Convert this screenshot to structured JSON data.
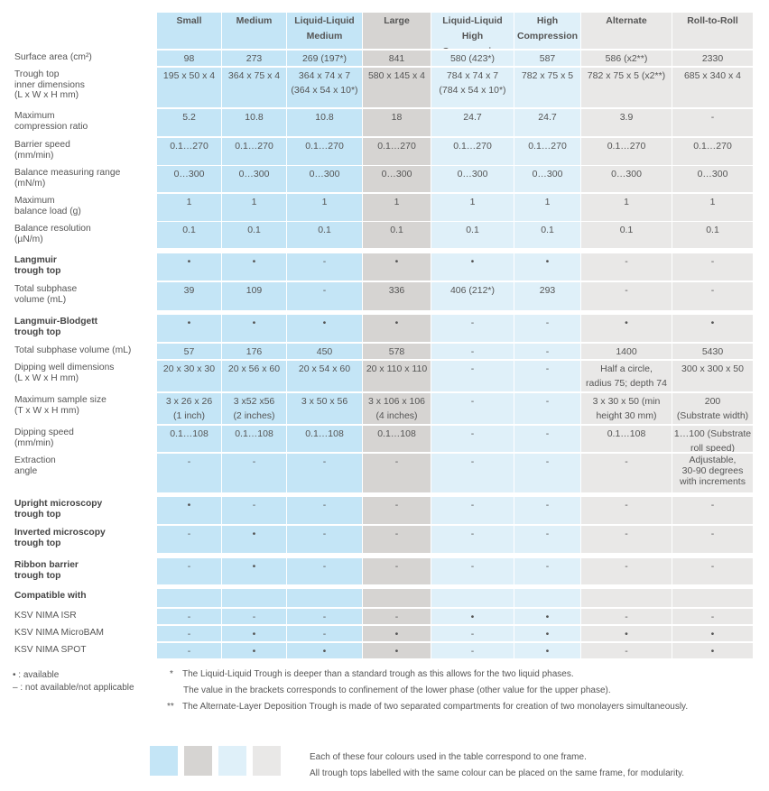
{
  "columns": [
    {
      "l1": "Small",
      "l2": ""
    },
    {
      "l1": "Medium",
      "l2": ""
    },
    {
      "l1": "Liquid-Liquid",
      "l2": "Medium"
    },
    {
      "l1": "Large",
      "l2": ""
    },
    {
      "l1": "Liquid-Liquid",
      "l2": "High Compression"
    },
    {
      "l1": "High",
      "l2": "Compression"
    },
    {
      "l1": "Alternate",
      "l2": ""
    },
    {
      "l1": "Roll-to-Roll",
      "l2": ""
    }
  ],
  "rows": [
    {
      "label": [
        "Surface area (cm²)"
      ],
      "bold": false,
      "cells": [
        [
          "98"
        ],
        [
          "273"
        ],
        [
          "269 (197*)"
        ],
        [
          "841"
        ],
        [
          "580 (423*)"
        ],
        [
          "587"
        ],
        [
          "586 (x2**)"
        ],
        [
          "2330"
        ]
      ]
    },
    {
      "label": [
        "Trough top",
        "inner dimensions",
        "(L x W x H mm)"
      ],
      "bold": false,
      "cells": [
        [
          "195 x 50 x 4"
        ],
        [
          "364 x 75 x 4"
        ],
        [
          "364 x 74 x 7",
          "(364 x 54 x 10*)"
        ],
        [
          "580 x 145 x 4"
        ],
        [
          "784 x 74 x 7",
          "(784 x 54 x 10*)"
        ],
        [
          "782 x 75 x 5"
        ],
        [
          "782 x 75 x 5  (x2**)"
        ],
        [
          "685 x 340 x 4"
        ]
      ]
    },
    {
      "label": [
        "Maximum",
        "compression ratio"
      ],
      "bold": false,
      "cells": [
        [
          "5.2"
        ],
        [
          "10.8"
        ],
        [
          "10.8"
        ],
        [
          "18"
        ],
        [
          "24.7"
        ],
        [
          "24.7"
        ],
        [
          "3.9"
        ],
        [
          "-"
        ]
      ]
    },
    {
      "label": [
        "Barrier speed",
        "(mm/min)"
      ],
      "bold": false,
      "cells": [
        [
          "0.1…270"
        ],
        [
          "0.1…270"
        ],
        [
          "0.1…270"
        ],
        [
          "0.1…270"
        ],
        [
          "0.1…270"
        ],
        [
          "0.1…270"
        ],
        [
          "0.1…270"
        ],
        [
          "0.1…270"
        ]
      ]
    },
    {
      "label": [
        "Balance measuring range",
        "(mN/m)"
      ],
      "bold": false,
      "cells": [
        [
          "0…300"
        ],
        [
          "0…300"
        ],
        [
          "0…300"
        ],
        [
          "0…300"
        ],
        [
          "0…300"
        ],
        [
          "0…300"
        ],
        [
          "0…300"
        ],
        [
          "0…300"
        ]
      ]
    },
    {
      "label": [
        "Maximum",
        "balance load (g)"
      ],
      "bold": false,
      "cells": [
        [
          "1"
        ],
        [
          "1"
        ],
        [
          "1"
        ],
        [
          "1"
        ],
        [
          "1"
        ],
        [
          "1"
        ],
        [
          "1"
        ],
        [
          "1"
        ]
      ]
    },
    {
      "label": [
        "Balance resolution",
        "(µN/m)"
      ],
      "bold": false,
      "cells": [
        [
          "0.1"
        ],
        [
          "0.1"
        ],
        [
          "0.1"
        ],
        [
          "0.1"
        ],
        [
          "0.1"
        ],
        [
          "0.1"
        ],
        [
          "0.1"
        ],
        [
          "0.1"
        ]
      ]
    },
    {
      "label": [
        "Langmuir",
        "trough top"
      ],
      "bold": true,
      "cells": [
        [
          "•"
        ],
        [
          "•"
        ],
        [
          "-"
        ],
        [
          "•"
        ],
        [
          "•"
        ],
        [
          "•"
        ],
        [
          "-"
        ],
        [
          "-"
        ]
      ]
    },
    {
      "label": [
        "Total subphase",
        "volume (mL)"
      ],
      "bold": false,
      "cells": [
        [
          "39"
        ],
        [
          "109"
        ],
        [
          "-"
        ],
        [
          "336"
        ],
        [
          "406 (212*)"
        ],
        [
          "293"
        ],
        [
          "-"
        ],
        [
          "-"
        ]
      ]
    },
    {
      "label": [
        "Langmuir-Blodgett",
        "trough top"
      ],
      "bold": true,
      "cells": [
        [
          "•"
        ],
        [
          "•"
        ],
        [
          "•"
        ],
        [
          "•"
        ],
        [
          "-"
        ],
        [
          "-"
        ],
        [
          "•"
        ],
        [
          "•"
        ]
      ]
    },
    {
      "label": [
        "Total subphase volume (mL)"
      ],
      "bold": false,
      "cells": [
        [
          "57"
        ],
        [
          "176"
        ],
        [
          "450"
        ],
        [
          "578"
        ],
        [
          "-"
        ],
        [
          "-"
        ],
        [
          "1400"
        ],
        [
          "5430"
        ]
      ]
    },
    {
      "label": [
        "Dipping well dimensions",
        "(L x W x H mm)"
      ],
      "bold": false,
      "cells": [
        [
          "20 x 30 x 30"
        ],
        [
          "20 x 56 x 60"
        ],
        [
          "20 x 54 x 60"
        ],
        [
          "20 x 110 x 110"
        ],
        [
          "-"
        ],
        [
          "-"
        ],
        [
          "Half a circle,",
          "radius 75; depth 74"
        ],
        [
          "300  x 300  x 50"
        ]
      ]
    },
    {
      "label": [
        "Maximum sample size",
        "(T x W x H mm)"
      ],
      "bold": false,
      "cells": [
        [
          "3 x 26 x 26",
          "(1 inch)"
        ],
        [
          "3 x52 x56",
          "(2 inches)"
        ],
        [
          "3 x 50 x 56"
        ],
        [
          "3 x 106 x 106",
          "(4 inches)"
        ],
        [
          "-"
        ],
        [
          "-"
        ],
        [
          "3 x 30 x 50 (min",
          "height 30 mm)"
        ],
        [
          "200",
          "(Substrate width)"
        ]
      ]
    },
    {
      "label": [
        "Dipping speed",
        "(mm/min)"
      ],
      "bold": false,
      "cells": [
        [
          "0.1…108"
        ],
        [
          "0.1…108"
        ],
        [
          "0.1…108"
        ],
        [
          "0.1…108"
        ],
        [
          "-"
        ],
        [
          "-"
        ],
        [
          "0.1…108"
        ],
        [
          "1…100 (Substrate",
          "roll speed)"
        ]
      ]
    },
    {
      "label": [
        "Extraction",
        "angle"
      ],
      "bold": false,
      "cells": [
        [
          "-"
        ],
        [
          "-"
        ],
        [
          "-"
        ],
        [
          "-"
        ],
        [
          "-"
        ],
        [
          "-"
        ],
        [
          "-"
        ],
        [
          "Adjustable,",
          "30-90 degrees",
          "with increments"
        ]
      ]
    },
    {
      "label": [
        "Upright microscopy",
        "trough top"
      ],
      "bold": true,
      "cells": [
        [
          "•"
        ],
        [
          "-"
        ],
        [
          "-"
        ],
        [
          "-"
        ],
        [
          "-"
        ],
        [
          "-"
        ],
        [
          "-"
        ],
        [
          "-"
        ]
      ]
    },
    {
      "label": [
        "Inverted microscopy",
        "trough top"
      ],
      "bold": true,
      "cells": [
        [
          "-"
        ],
        [
          "•"
        ],
        [
          "-"
        ],
        [
          "-"
        ],
        [
          "-"
        ],
        [
          "-"
        ],
        [
          "-"
        ],
        [
          "-"
        ]
      ]
    },
    {
      "label": [
        "Ribbon barrier",
        "trough top"
      ],
      "bold": true,
      "cells": [
        [
          "-"
        ],
        [
          "•"
        ],
        [
          "-"
        ],
        [
          "-"
        ],
        [
          "-"
        ],
        [
          "-"
        ],
        [
          "-"
        ],
        [
          "-"
        ]
      ]
    },
    {
      "label": [
        "Compatible with"
      ],
      "bold": true,
      "cells": [
        [
          ""
        ],
        [
          ""
        ],
        [
          ""
        ],
        [
          ""
        ],
        [
          ""
        ],
        [
          ""
        ],
        [
          ""
        ],
        [
          ""
        ]
      ]
    },
    {
      "label": [
        "KSV NIMA ISR"
      ],
      "bold": false,
      "cells": [
        [
          "-"
        ],
        [
          "-"
        ],
        [
          "-"
        ],
        [
          "-"
        ],
        [
          "•"
        ],
        [
          "•"
        ],
        [
          "-"
        ],
        [
          "-"
        ]
      ]
    },
    {
      "label": [
        "KSV NIMA MicroBAM"
      ],
      "bold": false,
      "cells": [
        [
          "-"
        ],
        [
          "•"
        ],
        [
          "-"
        ],
        [
          "•"
        ],
        [
          "-"
        ],
        [
          "•"
        ],
        [
          "•"
        ],
        [
          "•"
        ]
      ]
    },
    {
      "label": [
        "KSV NIMA SPOT"
      ],
      "bold": false,
      "cells": [
        [
          "-"
        ],
        [
          "•"
        ],
        [
          "•"
        ],
        [
          "•"
        ],
        [
          "-"
        ],
        [
          "•"
        ],
        [
          "-"
        ],
        [
          "•"
        ]
      ]
    }
  ],
  "legend": {
    "available": "• : available",
    "not_available": "– : not available/not applicable"
  },
  "footnotes": {
    "f1_mark": "*",
    "f1_line1": "The Liquid-Liquid Trough is deeper than a standard trough as this allows for the two liquid phases.",
    "f1_line2": "The value in the brackets corresponds to confinement of the lower phase (other value for the upper phase).",
    "f2_mark": "**",
    "f2_line1": "The Alternate-Layer Deposition Trough is made of two separated compartments for creation of two monolayers simultaneously."
  },
  "colour_note": {
    "line1": "Each of these four colours used in the table correspond to one frame.",
    "line2": "All trough tops labelled with the same colour can be placed on the same frame, for modularity."
  },
  "colors": {
    "frame_1": "#c4e5f6",
    "frame_2": "#d6d4d2",
    "frame_3": "#dff0f9",
    "frame_4": "#e9e8e7"
  }
}
